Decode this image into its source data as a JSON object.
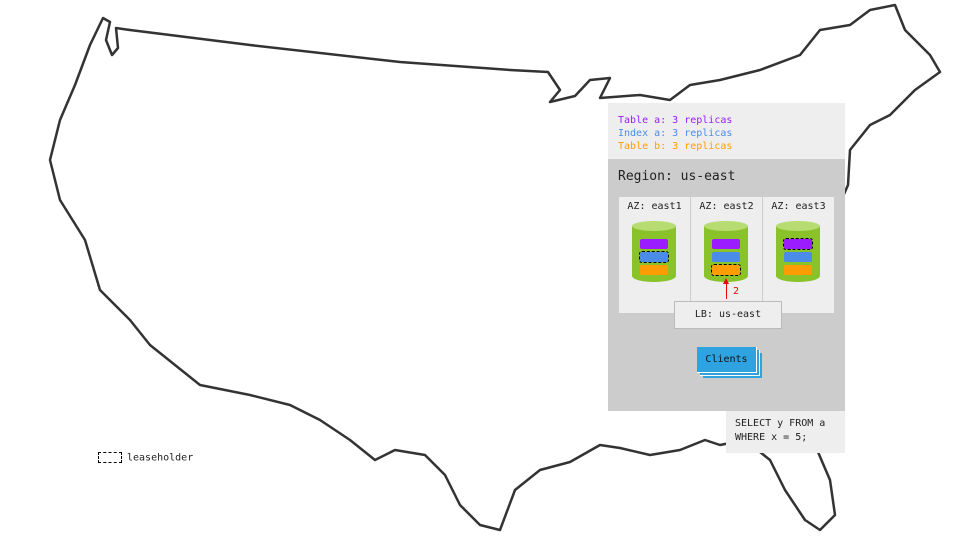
{
  "legend": {
    "table_a": "Table a: 3 replicas",
    "index_a": "Index a: 3 replicas",
    "table_b": "Table b: 3 replicas"
  },
  "colors": {
    "table_a": "#9b1cff",
    "index_a": "#4b8ce8",
    "table_b": "#ff9d00",
    "cylinder": "#8ac22a",
    "clients": "#2fa3e0",
    "arrow": "#e00000"
  },
  "region": {
    "title": "Region: us-east",
    "azs": [
      {
        "label": "AZ: east1",
        "leaseholder": "index_a"
      },
      {
        "label": "AZ: east2",
        "leaseholder": "table_b"
      },
      {
        "label": "AZ: east3",
        "leaseholder": "table_a"
      }
    ],
    "lb": "LB: us-east",
    "arrow_label": "2",
    "clients": "Clients"
  },
  "query": "SELECT y FROM a\nWHERE x = 5;",
  "leaseholder_legend": "leaseholder"
}
